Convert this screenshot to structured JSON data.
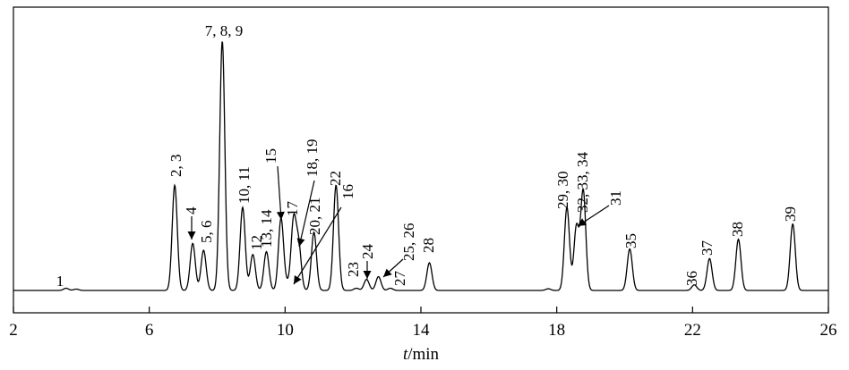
{
  "chart_data": {
    "type": "line",
    "title": "",
    "xlabel_italic": "t",
    "xlabel_unit": "/min",
    "ylabel": "",
    "xlim": [
      2,
      26
    ],
    "xticks": [
      2,
      6,
      10,
      14,
      18,
      22,
      26
    ],
    "grid": false,
    "legend": "none",
    "baseline_extras": [
      {
        "x": 3.85,
        "h": 0.5
      },
      {
        "x": 17.75,
        "h": 0.6
      }
    ],
    "peaks": [
      {
        "label": "1",
        "x": 3.55,
        "h": 0.8
      },
      {
        "label": "2, 3",
        "x": 6.75,
        "h": 38
      },
      {
        "label": "4",
        "x": 7.28,
        "h": 17
      },
      {
        "label": "5, 6",
        "x": 7.6,
        "h": 14.5
      },
      {
        "label": "7, 8, 9",
        "x": 8.15,
        "h": 90
      },
      {
        "label": "10, 11",
        "x": 8.75,
        "h": 30
      },
      {
        "label": "12",
        "x": 9.05,
        "h": 13
      },
      {
        "label": "13, 14",
        "x": 9.45,
        "h": 14
      },
      {
        "label": "15",
        "x": 9.88,
        "h": 26
      },
      {
        "label": "16",
        "x": 10.05,
        "h": 2
      },
      {
        "label": "17",
        "x": 10.25,
        "h": 25
      },
      {
        "label": "18, 19",
        "x": 10.4,
        "h": 16
      },
      {
        "label": "20, 21",
        "x": 10.85,
        "h": 21
      },
      {
        "label": "22",
        "x": 11.5,
        "h": 38
      },
      {
        "label": "23",
        "x": 12.1,
        "h": 0.8
      },
      {
        "label": "24",
        "x": 12.4,
        "h": 4
      },
      {
        "label": "25, 26",
        "x": 12.75,
        "h": 5
      },
      {
        "label": "27",
        "x": 13.1,
        "h": 0.8
      },
      {
        "label": "28",
        "x": 14.25,
        "h": 10
      },
      {
        "label": "29, 30",
        "x": 18.3,
        "h": 30
      },
      {
        "label": "31",
        "x": 18.58,
        "h": 23
      },
      {
        "label": "32, 33, 34",
        "x": 18.78,
        "h": 36
      },
      {
        "label": "35",
        "x": 20.15,
        "h": 15
      },
      {
        "label": "36",
        "x": 22.05,
        "h": 2
      },
      {
        "label": "37",
        "x": 22.5,
        "h": 11.5
      },
      {
        "label": "38",
        "x": 23.35,
        "h": 18.5
      },
      {
        "label": "39",
        "x": 24.95,
        "h": 24
      }
    ]
  }
}
